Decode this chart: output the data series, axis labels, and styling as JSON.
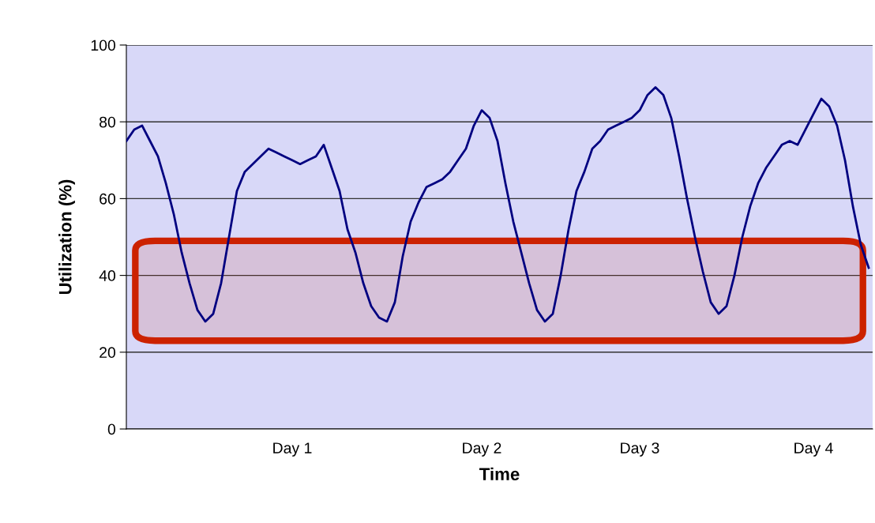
{
  "chart_data": {
    "type": "line",
    "xlabel": "Time",
    "ylabel": "Utilization (%)",
    "categories": [
      null,
      null,
      null,
      null,
      null,
      null,
      null,
      null,
      null,
      null,
      null,
      null,
      null,
      null,
      null,
      null,
      null,
      null,
      null,
      null,
      null,
      "Day 1",
      null,
      null,
      null,
      null,
      null,
      null,
      null,
      null,
      null,
      null,
      null,
      null,
      null,
      null,
      null,
      null,
      null,
      null,
      null,
      null,
      null,
      null,
      null,
      "Day 2",
      null,
      null,
      null,
      null,
      null,
      null,
      null,
      null,
      null,
      null,
      null,
      null,
      null,
      null,
      null,
      null,
      null,
      null,
      null,
      "Day 3",
      null,
      null,
      null,
      null,
      null,
      null,
      null,
      null,
      null,
      null,
      null,
      null,
      null,
      null,
      null,
      null,
      null,
      null,
      null,
      null,
      null,
      "Day 4",
      null,
      null,
      null,
      null,
      null,
      null,
      null
    ],
    "series": [
      {
        "color": "#000080",
        "values": [
          75,
          78,
          79,
          75,
          71,
          64,
          56,
          46,
          38,
          31,
          28,
          30,
          38,
          50,
          62,
          67,
          69,
          71,
          73,
          72,
          71,
          70,
          69,
          70,
          71,
          74,
          68,
          62,
          52,
          46,
          38,
          32,
          29,
          28,
          33,
          45,
          54,
          59,
          63,
          64,
          65,
          67,
          70,
          73,
          79,
          83,
          81,
          75,
          64,
          54,
          46,
          38,
          31,
          28,
          30,
          40,
          52,
          62,
          67,
          73,
          75,
          78,
          79,
          80,
          81,
          83,
          87,
          89,
          87,
          81,
          71,
          60,
          50,
          41,
          33,
          30,
          32,
          40,
          50,
          58,
          64,
          68,
          71,
          74,
          75,
          74,
          78,
          82,
          86,
          84,
          79,
          70,
          58,
          48,
          42
        ]
      }
    ],
    "ylim": [
      0,
      100
    ],
    "yticks": [
      0,
      20,
      40,
      60,
      80,
      100
    ],
    "grid": "y",
    "bands": [
      {
        "axis": "y",
        "from": 23,
        "to": 49,
        "color": "#cc2200"
      }
    ]
  }
}
